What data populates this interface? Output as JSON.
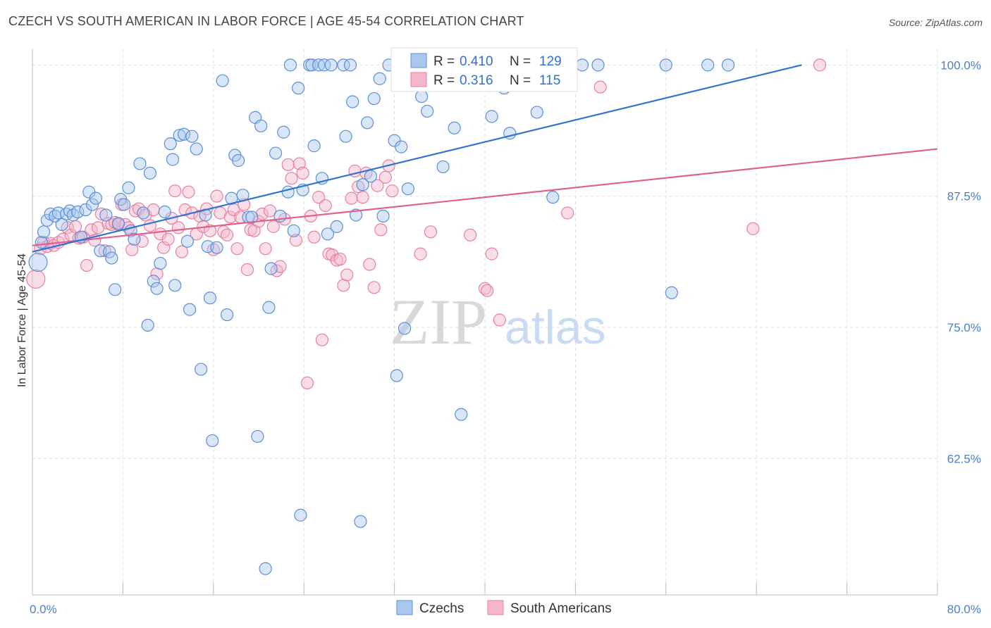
{
  "title": "CZECH VS SOUTH AMERICAN IN LABOR FORCE | AGE 45-54 CORRELATION CHART",
  "source": "Source: ZipAtlas.com",
  "watermark": {
    "zip": "ZIP",
    "atlas": "atlas"
  },
  "colors": {
    "czechs_fill": "#a9c7ee",
    "czechs_stroke": "#5b8fd6",
    "czechs_line": "#2f74cf",
    "sa_fill": "#f4b6c9",
    "sa_stroke": "#e87fa0",
    "sa_line": "#e0608d",
    "accent_text": "#2f6fd6",
    "grid": "#dddddd"
  },
  "stats": {
    "czechs": {
      "r_label": "R =",
      "r_value": "0.410",
      "n_label": "N =",
      "n_value": "129"
    },
    "south_americans": {
      "r_label": "R =",
      "r_value": "0.316",
      "n_label": "N =",
      "n_value": "115"
    }
  },
  "chart_data": {
    "type": "scatter",
    "title": "CZECH VS SOUTH AMERICAN IN LABOR FORCE | AGE 45-54 CORRELATION CHART",
    "xlabel": "",
    "ylabel": "In Labor Force | Age 45-54",
    "xlim": [
      0,
      80
    ],
    "ylim": [
      49.5,
      101.5
    ],
    "x_tick_labels": [
      {
        "value": 0,
        "label": "0.0%"
      },
      {
        "value": 80,
        "label": "80.0%"
      }
    ],
    "y_tick_labels": [
      {
        "value": 100,
        "label": "100.0%"
      },
      {
        "value": 87.5,
        "label": "87.5%"
      },
      {
        "value": 75,
        "label": "75.0%"
      },
      {
        "value": 62.5,
        "label": "62.5%"
      }
    ],
    "grid": true,
    "legend_position": "bottom-center",
    "series": [
      {
        "name": "Czechs",
        "trend": [
          [
            0,
            82.2
          ],
          [
            68,
            100
          ]
        ],
        "points": [
          [
            0.5,
            81.2
          ],
          [
            0.8,
            83.1
          ],
          [
            1,
            84.1
          ],
          [
            1.3,
            85.2
          ],
          [
            1.6,
            85.8
          ],
          [
            2,
            85.6
          ],
          [
            2.3,
            85.9
          ],
          [
            2.6,
            84.8
          ],
          [
            3,
            85.8
          ],
          [
            3.3,
            86.1
          ],
          [
            3.6,
            85.7
          ],
          [
            4,
            86.0
          ],
          [
            4.3,
            83.6
          ],
          [
            4.7,
            86.2
          ],
          [
            5,
            87.9
          ],
          [
            5.3,
            86.7
          ],
          [
            5.6,
            87.3
          ],
          [
            6,
            82.3
          ],
          [
            6.5,
            85.7
          ],
          [
            6.8,
            82.2
          ],
          [
            7,
            81.6
          ],
          [
            7.3,
            78.6
          ],
          [
            7.6,
            84.9
          ],
          [
            7.8,
            87.2
          ],
          [
            8.1,
            86.7
          ],
          [
            8.5,
            88.3
          ],
          [
            8.7,
            84.2
          ],
          [
            9,
            83.4
          ],
          [
            9.5,
            90.6
          ],
          [
            9.8,
            85.9
          ],
          [
            10.2,
            75.2
          ],
          [
            10.4,
            89.7
          ],
          [
            10.7,
            79.4
          ],
          [
            11,
            78.7
          ],
          [
            11.3,
            81.1
          ],
          [
            11.7,
            86.0
          ],
          [
            12.2,
            92.5
          ],
          [
            12.4,
            91.0
          ],
          [
            12.6,
            79.0
          ],
          [
            13,
            93.3
          ],
          [
            13.4,
            93.4
          ],
          [
            13.7,
            83.2
          ],
          [
            13.9,
            76.7
          ],
          [
            14.1,
            93.2
          ],
          [
            14.5,
            92.0
          ],
          [
            14.9,
            71.0
          ],
          [
            15.3,
            85.7
          ],
          [
            15.5,
            82.7
          ],
          [
            15.7,
            77.8
          ],
          [
            15.9,
            64.2
          ],
          [
            16.3,
            82.6
          ],
          [
            16.8,
            98.5
          ],
          [
            17.2,
            76.2
          ],
          [
            17.6,
            87.3
          ],
          [
            17.9,
            91.4
          ],
          [
            18.2,
            90.9
          ],
          [
            18.6,
            87.6
          ],
          [
            19.1,
            85.5
          ],
          [
            19.4,
            85.5
          ],
          [
            19.7,
            95.0
          ],
          [
            19.9,
            64.6
          ],
          [
            20.2,
            94.2
          ],
          [
            20.6,
            52.0
          ],
          [
            20.9,
            76.9
          ],
          [
            21.1,
            80.6
          ],
          [
            21.5,
            91.6
          ],
          [
            21.9,
            85.6
          ],
          [
            22.2,
            93.6
          ],
          [
            22.6,
            87.9
          ],
          [
            22.8,
            100
          ],
          [
            23.1,
            84.2
          ],
          [
            23.5,
            97.8
          ],
          [
            23.7,
            57.1
          ],
          [
            23.9,
            88.1
          ],
          [
            24.5,
            100
          ],
          [
            24.7,
            100
          ],
          [
            24.9,
            92.3
          ],
          [
            25.3,
            100
          ],
          [
            25.6,
            89.2
          ],
          [
            25.8,
            100
          ],
          [
            26.1,
            83.9
          ],
          [
            26.4,
            100
          ],
          [
            26.9,
            84.6
          ],
          [
            27.5,
            100
          ],
          [
            27.7,
            93.2
          ],
          [
            28.1,
            100
          ],
          [
            28.3,
            96.5
          ],
          [
            28.6,
            85.7
          ],
          [
            29.0,
            56.5
          ],
          [
            29.2,
            88.6
          ],
          [
            29.6,
            94.5
          ],
          [
            29.9,
            89.4
          ],
          [
            30.2,
            96.8
          ],
          [
            30.7,
            98.7
          ],
          [
            31.0,
            85.6
          ],
          [
            31.5,
            100
          ],
          [
            32.0,
            92.8
          ],
          [
            32.2,
            70.4
          ],
          [
            32.6,
            92.2
          ],
          [
            32.9,
            74.9
          ],
          [
            33.2,
            88.2
          ],
          [
            33.7,
            100
          ],
          [
            34.4,
            97.0
          ],
          [
            34.9,
            95.6
          ],
          [
            35.6,
            100
          ],
          [
            36.3,
            90.3
          ],
          [
            37.3,
            94.0
          ],
          [
            37.9,
            66.7
          ],
          [
            38.6,
            100
          ],
          [
            39.4,
            100
          ],
          [
            40.6,
            95.1
          ],
          [
            41.2,
            100
          ],
          [
            41.7,
            97.8
          ],
          [
            42.2,
            93.5
          ],
          [
            43.6,
            100
          ],
          [
            44.6,
            95.5
          ],
          [
            46.0,
            87.4
          ],
          [
            48.6,
            100
          ],
          [
            50.0,
            100
          ],
          [
            56.0,
            100
          ],
          [
            56.5,
            78.3
          ],
          [
            59.7,
            100
          ],
          [
            61.5,
            100
          ]
        ]
      },
      {
        "name": "South Americans",
        "trend": [
          [
            0,
            82.8
          ],
          [
            80,
            92.0
          ]
        ],
        "points": [
          [
            0.3,
            79.6
          ],
          [
            0.7,
            82.5
          ],
          [
            1,
            83.1
          ],
          [
            1.3,
            82.7
          ],
          [
            1.6,
            83.0
          ],
          [
            1.9,
            82.8
          ],
          [
            2.3,
            83.1
          ],
          [
            2.7,
            83.4
          ],
          [
            3.1,
            84.5
          ],
          [
            3.4,
            83.8
          ],
          [
            3.8,
            84.6
          ],
          [
            4.1,
            83.5
          ],
          [
            4.5,
            83.6
          ],
          [
            4.8,
            80.9
          ],
          [
            5.2,
            84.3
          ],
          [
            5.5,
            83.3
          ],
          [
            5.8,
            84.5
          ],
          [
            6.1,
            85.8
          ],
          [
            6.4,
            82.3
          ],
          [
            6.7,
            84.9
          ],
          [
            7.0,
            84.8
          ],
          [
            7.3,
            85.0
          ],
          [
            7.6,
            84.8
          ],
          [
            7.9,
            86.7
          ],
          [
            8.2,
            84.8
          ],
          [
            8.5,
            84.5
          ],
          [
            8.8,
            82.4
          ],
          [
            9.1,
            86.1
          ],
          [
            9.4,
            86.3
          ],
          [
            9.7,
            83.2
          ],
          [
            10.0,
            85.7
          ],
          [
            10.4,
            84.7
          ],
          [
            10.7,
            86.2
          ],
          [
            11.0,
            80.1
          ],
          [
            11.3,
            83.9
          ],
          [
            11.6,
            82.6
          ],
          [
            12.0,
            83.4
          ],
          [
            12.3,
            85.4
          ],
          [
            12.6,
            88.0
          ],
          [
            12.9,
            84.5
          ],
          [
            13.2,
            82.2
          ],
          [
            13.5,
            86.2
          ],
          [
            13.8,
            87.9
          ],
          [
            14.1,
            85.9
          ],
          [
            14.5,
            83.9
          ],
          [
            14.8,
            85.6
          ],
          [
            15.1,
            84.6
          ],
          [
            15.4,
            86.3
          ],
          [
            15.7,
            84.2
          ],
          [
            16.0,
            82.4
          ],
          [
            16.3,
            87.5
          ],
          [
            16.6,
            85.9
          ],
          [
            16.9,
            84.1
          ],
          [
            17.2,
            83.8
          ],
          [
            17.5,
            85.5
          ],
          [
            17.8,
            86.2
          ],
          [
            18.1,
            82.5
          ],
          [
            18.4,
            85.5
          ],
          [
            18.7,
            86.7
          ],
          [
            19.0,
            80.5
          ],
          [
            19.3,
            84.3
          ],
          [
            19.6,
            84.2
          ],
          [
            20.0,
            85.1
          ],
          [
            20.3,
            85.8
          ],
          [
            20.6,
            82.5
          ],
          [
            21.0,
            86.1
          ],
          [
            21.3,
            84.6
          ],
          [
            21.6,
            80.4
          ],
          [
            21.9,
            80.8
          ],
          [
            22.3,
            85.3
          ],
          [
            22.6,
            90.5
          ],
          [
            22.9,
            89.2
          ],
          [
            23.3,
            83.3
          ],
          [
            23.6,
            90.6
          ],
          [
            23.9,
            89.7
          ],
          [
            24.3,
            69.7
          ],
          [
            24.6,
            85.6
          ],
          [
            24.9,
            83.6
          ],
          [
            25.3,
            87.4
          ],
          [
            25.6,
            73.8
          ],
          [
            25.9,
            86.6
          ],
          [
            26.2,
            82.0
          ],
          [
            26.5,
            81.9
          ],
          [
            26.9,
            81.4
          ],
          [
            27.2,
            81.5
          ],
          [
            27.5,
            79.0
          ],
          [
            27.8,
            80.0
          ],
          [
            28.2,
            87.3
          ],
          [
            28.5,
            89.9
          ],
          [
            28.8,
            88.4
          ],
          [
            29.2,
            87.4
          ],
          [
            29.5,
            89.7
          ],
          [
            29.8,
            81.0
          ],
          [
            30.2,
            78.8
          ],
          [
            30.5,
            88.5
          ],
          [
            30.8,
            84.3
          ],
          [
            31.2,
            89.3
          ],
          [
            31.5,
            90.4
          ],
          [
            31.8,
            88.0
          ],
          [
            34.3,
            82.0
          ],
          [
            35.2,
            84.1
          ],
          [
            35.5,
            100
          ],
          [
            38.7,
            83.8
          ],
          [
            40.0,
            78.7
          ],
          [
            40.2,
            78.5
          ],
          [
            40.6,
            82.0
          ],
          [
            41.3,
            75.7
          ],
          [
            43.3,
            100
          ],
          [
            44.4,
            100
          ],
          [
            47.3,
            85.9
          ],
          [
            50.2,
            97.9
          ],
          [
            63.7,
            84.4
          ],
          [
            69.6,
            100
          ]
        ]
      }
    ]
  },
  "legend": {
    "czechs": "Czechs",
    "south_americans": "South Americans"
  }
}
